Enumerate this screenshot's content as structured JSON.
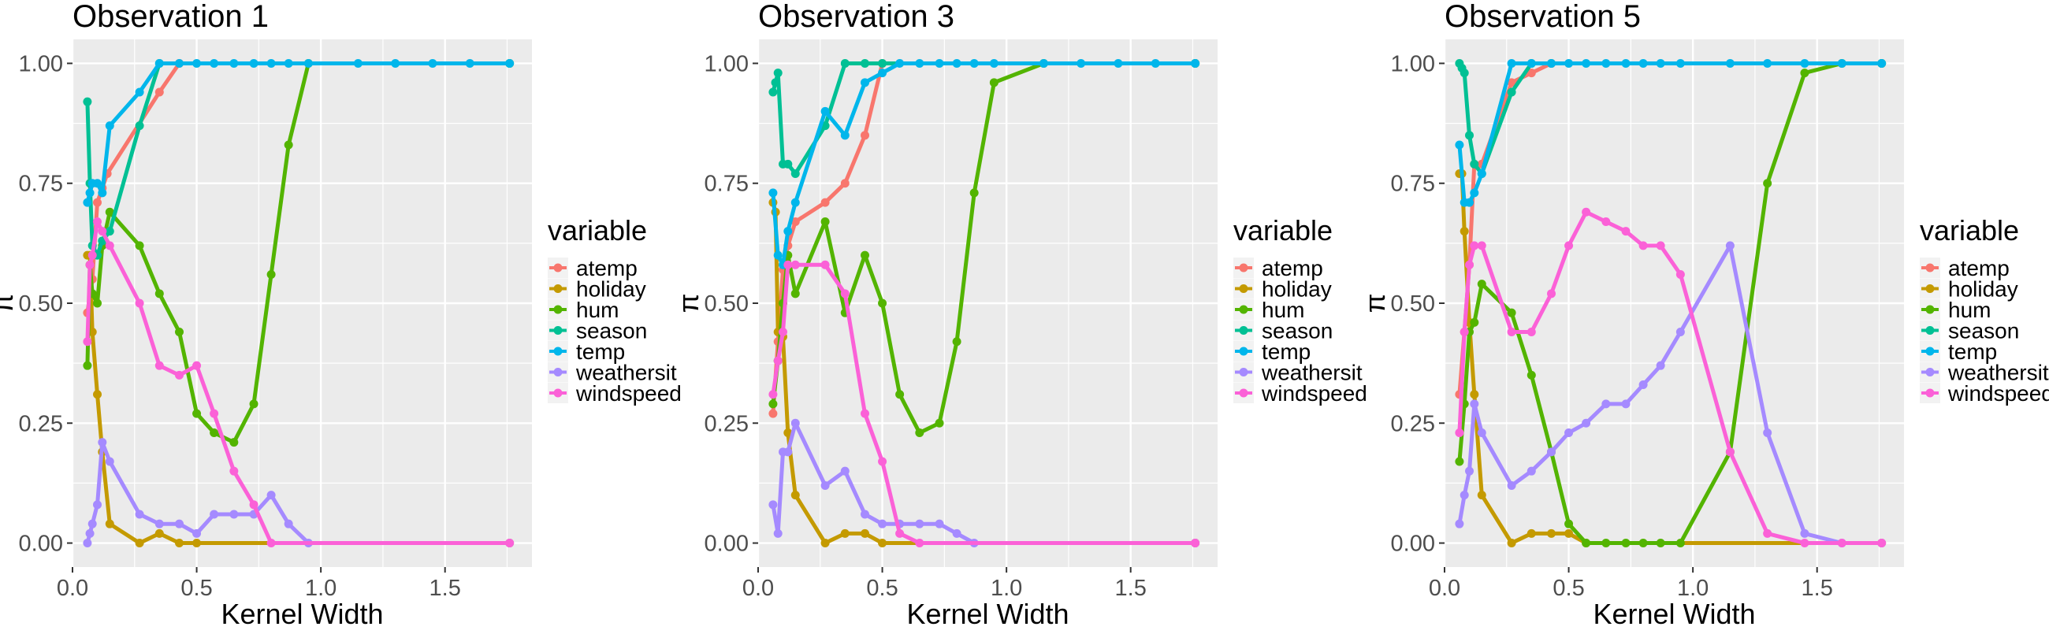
{
  "chart_data": {
    "type": "line",
    "layout": "three panels side by side, shared legend style",
    "xlabel": "Kernel Width",
    "ylabel": "π",
    "xlim": [
      0,
      1.85
    ],
    "ylim": [
      -0.05,
      1.05
    ],
    "xticks": [
      "0.0",
      "0.5",
      "1.0",
      "1.5"
    ],
    "yticks": [
      "0.00",
      "0.25",
      "0.50",
      "0.75",
      "1.00"
    ],
    "grid": true,
    "legend": {
      "title": "variable",
      "placement": "right of each panel",
      "entries": [
        "atemp",
        "holiday",
        "hum",
        "season",
        "temp",
        "weathersit",
        "windspeed"
      ]
    },
    "colors": {
      "atemp": "#F8766D",
      "holiday": "#C49A00",
      "hum": "#53B400",
      "season": "#00C094",
      "temp": "#00B6EB",
      "weathersit": "#A58AFF",
      "windspeed": "#FB61D7",
      "panel_bg": "#EBEBEB",
      "grid": "#FFFFFF"
    },
    "panels": [
      {
        "title": "Observation 1",
        "series": [
          {
            "name": "atemp",
            "x": [
              0.06,
              0.08,
              0.1,
              0.12,
              0.14,
              0.35,
              0.43
            ],
            "y": [
              0.48,
              0.55,
              0.71,
              0.74,
              0.77,
              0.94,
              1.0
            ]
          },
          {
            "name": "holiday",
            "x": [
              0.06,
              0.07,
              0.08,
              0.1,
              0.12,
              0.15,
              0.27,
              0.35,
              0.43,
              0.5,
              1.76
            ],
            "y": [
              0.6,
              0.6,
              0.44,
              0.31,
              0.19,
              0.04,
              0.0,
              0.02,
              0.0,
              0.0,
              0.0
            ]
          },
          {
            "name": "hum",
            "x": [
              0.06,
              0.07,
              0.08,
              0.1,
              0.12,
              0.15,
              0.27,
              0.35,
              0.43,
              0.5,
              0.57,
              0.65,
              0.73,
              0.8,
              0.87,
              0.95,
              1.76
            ],
            "y": [
              0.37,
              0.58,
              0.52,
              0.5,
              0.62,
              0.69,
              0.62,
              0.52,
              0.44,
              0.27,
              0.23,
              0.21,
              0.29,
              0.56,
              0.83,
              1.0,
              1.0
            ]
          },
          {
            "name": "season",
            "x": [
              0.06,
              0.07,
              0.08,
              0.1,
              0.12,
              0.15,
              0.27,
              0.35,
              1.76
            ],
            "y": [
              0.92,
              0.75,
              0.62,
              0.6,
              0.63,
              0.65,
              0.87,
              1.0,
              1.0
            ]
          },
          {
            "name": "temp",
            "x": [
              0.06,
              0.07,
              0.08,
              0.1,
              0.12,
              0.15,
              0.27,
              0.35,
              0.43,
              0.5,
              0.57,
              0.65,
              0.73,
              0.8,
              0.87,
              0.95,
              1.15,
              1.3,
              1.45,
              1.6,
              1.76
            ],
            "y": [
              0.71,
              0.73,
              0.75,
              0.75,
              0.73,
              0.87,
              0.94,
              1.0,
              1.0,
              1.0,
              1.0,
              1.0,
              1.0,
              1.0,
              1.0,
              1.0,
              1.0,
              1.0,
              1.0,
              1.0,
              1.0
            ]
          },
          {
            "name": "weathersit",
            "x": [
              0.06,
              0.07,
              0.08,
              0.1,
              0.12,
              0.15,
              0.27,
              0.35,
              0.43,
              0.5,
              0.57,
              0.65,
              0.73,
              0.8,
              0.87,
              0.95,
              1.76
            ],
            "y": [
              0.0,
              0.02,
              0.04,
              0.08,
              0.21,
              0.17,
              0.06,
              0.04,
              0.04,
              0.02,
              0.06,
              0.06,
              0.06,
              0.1,
              0.04,
              0.0,
              0.0
            ]
          },
          {
            "name": "windspeed",
            "x": [
              0.06,
              0.07,
              0.08,
              0.1,
              0.12,
              0.15,
              0.27,
              0.35,
              0.43,
              0.5,
              0.57,
              0.65,
              0.73,
              0.8,
              1.76
            ],
            "y": [
              0.42,
              0.58,
              0.6,
              0.67,
              0.65,
              0.62,
              0.5,
              0.37,
              0.35,
              0.37,
              0.27,
              0.15,
              0.08,
              0.0,
              0.0
            ]
          }
        ]
      },
      {
        "title": "Observation 3",
        "series": [
          {
            "name": "atemp",
            "x": [
              0.06,
              0.08,
              0.1,
              0.12,
              0.15,
              0.27,
              0.35,
              0.43,
              0.5,
              1.76
            ],
            "y": [
              0.27,
              0.42,
              0.57,
              0.62,
              0.67,
              0.71,
              0.75,
              0.85,
              1.0,
              1.0
            ]
          },
          {
            "name": "holiday",
            "x": [
              0.06,
              0.07,
              0.08,
              0.1,
              0.12,
              0.15,
              0.27,
              0.35,
              0.43,
              0.5,
              1.76
            ],
            "y": [
              0.71,
              0.69,
              0.44,
              0.43,
              0.23,
              0.1,
              0.0,
              0.02,
              0.02,
              0.0,
              0.0
            ]
          },
          {
            "name": "hum",
            "x": [
              0.06,
              0.08,
              0.1,
              0.12,
              0.15,
              0.27,
              0.35,
              0.43,
              0.5,
              0.57,
              0.65,
              0.73,
              0.8,
              0.87,
              0.95,
              1.15,
              1.76
            ],
            "y": [
              0.29,
              0.38,
              0.5,
              0.6,
              0.52,
              0.67,
              0.48,
              0.6,
              0.5,
              0.31,
              0.23,
              0.25,
              0.42,
              0.73,
              0.96,
              1.0,
              1.0
            ]
          },
          {
            "name": "season",
            "x": [
              0.06,
              0.07,
              0.08,
              0.1,
              0.12,
              0.15,
              0.27,
              0.35,
              0.43,
              0.5,
              1.76
            ],
            "y": [
              0.94,
              0.96,
              0.98,
              0.79,
              0.79,
              0.77,
              0.87,
              1.0,
              1.0,
              1.0,
              1.0
            ]
          },
          {
            "name": "temp",
            "x": [
              0.06,
              0.08,
              0.1,
              0.12,
              0.15,
              0.27,
              0.35,
              0.43,
              0.5,
              0.57,
              0.65,
              0.73,
              0.8,
              0.87,
              0.95,
              1.15,
              1.3,
              1.45,
              1.6,
              1.76
            ],
            "y": [
              0.73,
              0.6,
              0.58,
              0.65,
              0.71,
              0.9,
              0.85,
              0.96,
              0.98,
              1.0,
              1.0,
              1.0,
              1.0,
              1.0,
              1.0,
              1.0,
              1.0,
              1.0,
              1.0,
              1.0
            ]
          },
          {
            "name": "weathersit",
            "x": [
              0.06,
              0.08,
              0.1,
              0.12,
              0.15,
              0.27,
              0.35,
              0.43,
              0.5,
              0.57,
              0.65,
              0.73,
              0.8,
              0.87,
              1.76
            ],
            "y": [
              0.08,
              0.02,
              0.19,
              0.19,
              0.25,
              0.12,
              0.15,
              0.06,
              0.04,
              0.04,
              0.04,
              0.04,
              0.02,
              0.0,
              0.0
            ]
          },
          {
            "name": "windspeed",
            "x": [
              0.06,
              0.08,
              0.1,
              0.12,
              0.15,
              0.27,
              0.35,
              0.43,
              0.5,
              0.57,
              0.65,
              1.76
            ],
            "y": [
              0.31,
              0.38,
              0.44,
              0.58,
              0.58,
              0.58,
              0.52,
              0.27,
              0.17,
              0.02,
              0.0,
              0.0
            ]
          }
        ]
      },
      {
        "title": "Observation 5",
        "series": [
          {
            "name": "atemp",
            "x": [
              0.06,
              0.08,
              0.1,
              0.12,
              0.15,
              0.27,
              0.35,
              0.43,
              1.76
            ],
            "y": [
              0.31,
              0.44,
              0.58,
              0.79,
              0.79,
              0.96,
              0.98,
              1.0,
              1.0
            ]
          },
          {
            "name": "holiday",
            "x": [
              0.06,
              0.07,
              0.08,
              0.1,
              0.12,
              0.15,
              0.27,
              0.35,
              0.43,
              0.5,
              0.57,
              1.76
            ],
            "y": [
              0.77,
              0.77,
              0.65,
              0.46,
              0.31,
              0.1,
              0.0,
              0.02,
              0.02,
              0.02,
              0.0,
              0.0
            ]
          },
          {
            "name": "hum",
            "x": [
              0.06,
              0.08,
              0.1,
              0.12,
              0.15,
              0.27,
              0.35,
              0.43,
              0.5,
              0.57,
              0.65,
              0.73,
              0.8,
              0.87,
              0.95,
              1.15,
              1.3,
              1.45,
              1.6,
              1.76
            ],
            "y": [
              0.17,
              0.29,
              0.44,
              0.46,
              0.54,
              0.48,
              0.35,
              0.19,
              0.04,
              0.0,
              0.0,
              0.0,
              0.0,
              0.0,
              0.0,
              0.19,
              0.75,
              0.98,
              1.0,
              1.0
            ]
          },
          {
            "name": "season",
            "x": [
              0.06,
              0.07,
              0.08,
              0.1,
              0.12,
              0.15,
              0.27,
              0.35,
              0.43,
              1.76
            ],
            "y": [
              1.0,
              0.99,
              0.98,
              0.85,
              0.79,
              0.77,
              0.94,
              1.0,
              1.0,
              1.0
            ]
          },
          {
            "name": "temp",
            "x": [
              0.06,
              0.08,
              0.1,
              0.12,
              0.15,
              0.27,
              0.35,
              0.43,
              0.5,
              0.57,
              0.65,
              0.73,
              0.8,
              0.87,
              0.95,
              1.15,
              1.3,
              1.45,
              1.6,
              1.76
            ],
            "y": [
              0.83,
              0.71,
              0.71,
              0.73,
              0.77,
              1.0,
              1.0,
              1.0,
              1.0,
              1.0,
              1.0,
              1.0,
              1.0,
              1.0,
              1.0,
              1.0,
              1.0,
              1.0,
              1.0,
              1.0
            ]
          },
          {
            "name": "weathersit",
            "x": [
              0.06,
              0.08,
              0.1,
              0.12,
              0.15,
              0.27,
              0.35,
              0.43,
              0.5,
              0.57,
              0.65,
              0.73,
              0.8,
              0.87,
              0.95,
              1.15,
              1.3,
              1.45,
              1.6,
              1.76
            ],
            "y": [
              0.04,
              0.1,
              0.15,
              0.29,
              0.23,
              0.12,
              0.15,
              0.19,
              0.23,
              0.25,
              0.29,
              0.29,
              0.33,
              0.37,
              0.44,
              0.62,
              0.23,
              0.02,
              0.0,
              0.0
            ]
          },
          {
            "name": "windspeed",
            "x": [
              0.06,
              0.08,
              0.1,
              0.12,
              0.15,
              0.27,
              0.35,
              0.43,
              0.5,
              0.57,
              0.65,
              0.73,
              0.8,
              0.87,
              0.95,
              1.15,
              1.3,
              1.45,
              1.6,
              1.76
            ],
            "y": [
              0.23,
              0.44,
              0.58,
              0.62,
              0.62,
              0.44,
              0.44,
              0.52,
              0.62,
              0.69,
              0.67,
              0.65,
              0.62,
              0.62,
              0.56,
              0.19,
              0.02,
              0.0,
              0.0,
              0.0
            ]
          }
        ]
      }
    ]
  }
}
